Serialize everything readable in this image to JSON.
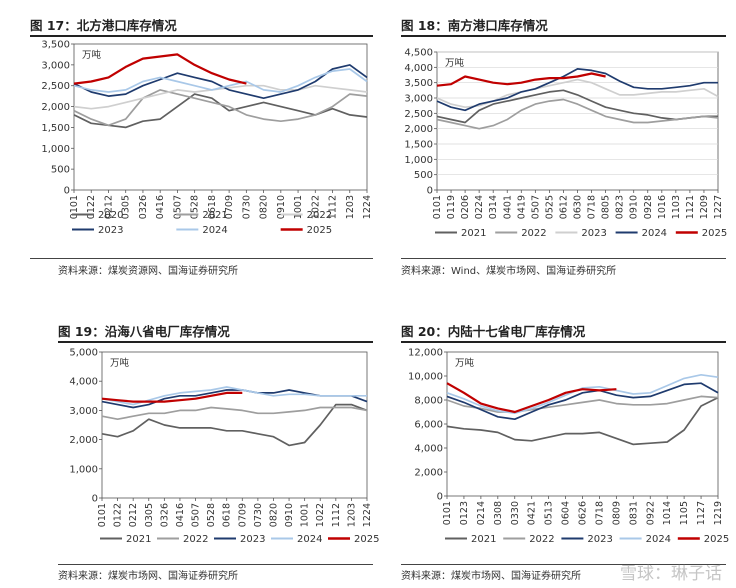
{
  "panels": [
    {
      "title": "图 17：北方港口库存情况",
      "source": "资料来源：煤炭资源网、国海证券研究所",
      "chart_data": {
        "type": "line",
        "unit": "万吨",
        "ylim": [
          0,
          3500
        ],
        "yticks": [
          "0",
          "500",
          "1,000",
          "1,500",
          "2,000",
          "2,500",
          "3,000",
          "3,500"
        ],
        "ytick_values": [
          0,
          500,
          1000,
          1500,
          2000,
          2500,
          3000,
          3500
        ],
        "x_ticks": [
          "0101",
          "0122",
          "0212",
          "0305",
          "0326",
          "0416",
          "0507",
          "0528",
          "0618",
          "0709",
          "0730",
          "0820",
          "0910",
          "1001",
          "1022",
          "1112",
          "1203",
          "1224"
        ],
        "grid": false,
        "legend": "bottom",
        "series": [
          {
            "name": "2020",
            "color": "#606060",
            "values": [
              1800,
              1600,
              1550,
              1500,
              1650,
              1700,
              2000,
              2300,
              2200,
              1900,
              2000,
              2100,
              2000,
              1900,
              1800,
              1950,
              1800,
              1750
            ]
          },
          {
            "name": "2021",
            "color": "#9e9e9e",
            "values": [
              1900,
              1700,
              1550,
              1700,
              2200,
              2400,
              2300,
              2200,
              2100,
              2000,
              1800,
              1700,
              1650,
              1700,
              1800,
              2000,
              2300,
              2250
            ]
          },
          {
            "name": "2022",
            "color": "#cfcfcf",
            "values": [
              2000,
              1950,
              2000,
              2100,
              2200,
              2300,
              2400,
              2350,
              2400,
              2450,
              2500,
              2500,
              2400,
              2400,
              2500,
              2450,
              2400,
              2350
            ]
          },
          {
            "name": "2023",
            "color": "#1f3b6e",
            "values": [
              2550,
              2350,
              2250,
              2300,
              2500,
              2650,
              2800,
              2700,
              2600,
              2400,
              2300,
              2200,
              2300,
              2400,
              2600,
              2900,
              3000,
              2700
            ]
          },
          {
            "name": "2024",
            "color": "#a9c8e8",
            "values": [
              2500,
              2400,
              2350,
              2400,
              2600,
              2700,
              2600,
              2500,
              2400,
              2500,
              2600,
              2400,
              2350,
              2500,
              2700,
              2850,
              2900,
              2600
            ]
          },
          {
            "name": "2025",
            "color": "#c00000",
            "values": [
              2550,
              2600,
              2700,
              2950,
              3150,
              3200,
              3250,
              3000,
              2800,
              2650,
              2550,
              null,
              null,
              null,
              null,
              null,
              null,
              null
            ]
          }
        ]
      }
    },
    {
      "title": "图 18：南方港口库存情况",
      "source": "资料来源：Wind、煤炭市场网、国海证券研究所",
      "chart_data": {
        "type": "line",
        "unit": "万吨",
        "ylim": [
          0,
          4500
        ],
        "yticks": [
          "0",
          "500",
          "1,000",
          "1,500",
          "2,000",
          "2,500",
          "3,000",
          "3,500",
          "4,000",
          "4,500"
        ],
        "ytick_values": [
          0,
          500,
          1000,
          1500,
          2000,
          2500,
          3000,
          3500,
          4000,
          4500
        ],
        "x_ticks": [
          "0101",
          "0119",
          "0206",
          "0224",
          "0314",
          "0401",
          "0419",
          "0507",
          "0525",
          "0612",
          "0630",
          "0718",
          "0805",
          "0823",
          "0910",
          "0928",
          "1016",
          "1103",
          "1121",
          "1209",
          "1227"
        ],
        "grid": true,
        "legend": "bottom",
        "series": [
          {
            "name": "2021",
            "color": "#606060",
            "values": [
              2400,
              2300,
              2200,
              2600,
              2800,
              2900,
              3000,
              3100,
              3200,
              3250,
              3100,
              2900,
              2700,
              2600,
              2500,
              2450,
              2350,
              2300,
              2350,
              2400,
              2400
            ]
          },
          {
            "name": "2022",
            "color": "#9e9e9e",
            "values": [
              2300,
              2200,
              2100,
              2000,
              2100,
              2300,
              2600,
              2800,
              2900,
              2950,
              2800,
              2600,
              2400,
              2300,
              2200,
              2200,
              2250,
              2300,
              2350,
              2400,
              2350
            ]
          },
          {
            "name": "2023",
            "color": "#cfcfcf",
            "values": [
              3000,
              2800,
              2700,
              2750,
              2900,
              3100,
              3200,
              3300,
              3400,
              3500,
              3600,
              3500,
              3300,
              3100,
              3100,
              3150,
              3200,
              3200,
              3250,
              3300,
              3050
            ]
          },
          {
            "name": "2024",
            "color": "#1f3b6e",
            "values": [
              2900,
              2700,
              2600,
              2800,
              2900,
              3000,
              3200,
              3300,
              3500,
              3700,
              3950,
              3900,
              3800,
              3550,
              3350,
              3300,
              3300,
              3350,
              3400,
              3500,
              3500
            ]
          },
          {
            "name": "2025",
            "color": "#c00000",
            "values": [
              3400,
              3450,
              3700,
              3600,
              3500,
              3450,
              3500,
              3600,
              3650,
              3650,
              3700,
              3800,
              3700,
              null,
              null,
              null,
              null,
              null,
              null,
              null,
              null
            ]
          }
        ]
      }
    },
    {
      "title": "图 19：沿海八省电厂库存情况",
      "source": "资料来源：煤炭市场网、国海证券研究所",
      "chart_data": {
        "type": "line",
        "unit": "万吨",
        "ylim": [
          0,
          5000
        ],
        "yticks": [
          "0",
          "1,000",
          "2,000",
          "3,000",
          "4,000",
          "5,000"
        ],
        "ytick_values": [
          0,
          1000,
          2000,
          3000,
          4000,
          5000
        ],
        "x_ticks": [
          "0101",
          "0122",
          "0212",
          "0305",
          "0326",
          "0416",
          "0507",
          "0528",
          "0618",
          "0709",
          "0730",
          "0820",
          "0910",
          "1001",
          "1022",
          "1112",
          "1203",
          "1224"
        ],
        "grid": false,
        "legend": "bottom",
        "series": [
          {
            "name": "2021",
            "color": "#606060",
            "values": [
              2200,
              2100,
              2300,
              2700,
              2500,
              2400,
              2400,
              2400,
              2300,
              2300,
              2200,
              2100,
              1800,
              1900,
              2500,
              3200,
              3200,
              3000
            ]
          },
          {
            "name": "2022",
            "color": "#9e9e9e",
            "values": [
              2800,
              2700,
              2800,
              2900,
              2900,
              3000,
              3000,
              3100,
              3050,
              3000,
              2900,
              2900,
              2950,
              3000,
              3100,
              3100,
              3100,
              3000
            ]
          },
          {
            "name": "2023",
            "color": "#1f3b6e",
            "values": [
              3300,
              3200,
              3100,
              3200,
              3400,
              3500,
              3500,
              3600,
              3700,
              3700,
              3600,
              3600,
              3700,
              3600,
              3500,
              3500,
              3500,
              3300
            ]
          },
          {
            "name": "2024",
            "color": "#a9c8e8",
            "values": [
              3400,
              3300,
              3200,
              3350,
              3500,
              3600,
              3650,
              3700,
              3800,
              3700,
              3600,
              3500,
              3550,
              3550,
              3500,
              3500,
              3500,
              3500
            ]
          },
          {
            "name": "2025",
            "color": "#c00000",
            "values": [
              3400,
              3350,
              3300,
              3300,
              3300,
              3350,
              3400,
              3500,
              3600,
              3600,
              null,
              null,
              null,
              null,
              null,
              null,
              null,
              null
            ]
          }
        ]
      }
    },
    {
      "title": "图 20：内陆十七省电厂库存情况",
      "source": "资料来源：煤炭市场网、国海证券研究所",
      "chart_data": {
        "type": "line",
        "unit": "万吨",
        "ylim": [
          0,
          12000
        ],
        "yticks": [
          "0",
          "2,000",
          "4,000",
          "6,000",
          "8,000",
          "10,000",
          "12,000"
        ],
        "ytick_values": [
          0,
          2000,
          4000,
          6000,
          8000,
          10000,
          12000
        ],
        "x_ticks": [
          "0101",
          "0123",
          "0214",
          "0308",
          "0330",
          "0421",
          "0513",
          "0604",
          "0626",
          "0718",
          "0809",
          "0831",
          "0922",
          "1014",
          "1105",
          "1127",
          "1219"
        ],
        "grid": false,
        "legend": "bottom",
        "series": [
          {
            "name": "2021",
            "color": "#606060",
            "values": [
              5800,
              5600,
              5500,
              5300,
              4700,
              4600,
              4900,
              5200,
              5200,
              5300,
              4800,
              4300,
              4400,
              4500,
              5500,
              7500,
              8200
            ]
          },
          {
            "name": "2022",
            "color": "#9e9e9e",
            "values": [
              8000,
              7500,
              7300,
              7000,
              7000,
              7200,
              7400,
              7600,
              7800,
              8000,
              7700,
              7600,
              7600,
              7700,
              8000,
              8300,
              8200
            ]
          },
          {
            "name": "2023",
            "color": "#1f3b6e",
            "values": [
              8300,
              7800,
              7200,
              6600,
              6400,
              7000,
              7600,
              8000,
              8600,
              8800,
              8400,
              8200,
              8300,
              8800,
              9300,
              9400,
              8600
            ]
          },
          {
            "name": "2024",
            "color": "#a9c8e8",
            "values": [
              8600,
              8100,
              7500,
              7100,
              6900,
              7300,
              7800,
              8400,
              9000,
              9100,
              8800,
              8500,
              8600,
              9200,
              9800,
              10100,
              9900
            ]
          },
          {
            "name": "2025",
            "color": "#c00000",
            "values": [
              9400,
              8600,
              7700,
              7300,
              7000,
              7500,
              8000,
              8600,
              8900,
              8800,
              8900,
              null,
              null,
              null,
              null,
              null,
              null
            ]
          }
        ]
      }
    }
  ],
  "watermark": "雪球：琳子话"
}
